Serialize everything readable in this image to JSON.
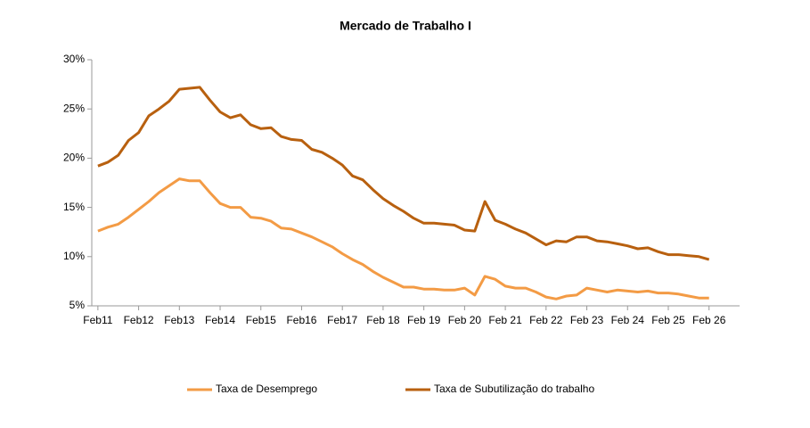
{
  "chart_data": {
    "type": "line",
    "title": "Mercado de Trabalho I",
    "x": [
      "2011-02",
      "2011-05",
      "2011-08",
      "2011-11",
      "2012-02",
      "2012-05",
      "2012-08",
      "2012-11",
      "2013-02",
      "2013-05",
      "2013-08",
      "2013-11",
      "2014-02",
      "2014-05",
      "2014-08",
      "2014-11",
      "2015-02",
      "2015-05",
      "2015-08",
      "2015-11",
      "2016-02",
      "2016-05",
      "2016-08",
      "2016-11",
      "2017-02",
      "2017-05",
      "2017-08",
      "2017-11",
      "2018-02",
      "2018-05",
      "2018-08",
      "2018-11",
      "2019-02",
      "2019-05",
      "2019-08",
      "2019-11",
      "2020-02",
      "2020-05",
      "2020-08",
      "2020-11",
      "2021-02",
      "2021-05",
      "2021-08",
      "2021-11",
      "2022-02",
      "2022-05",
      "2022-08",
      "2022-11",
      "2023-02",
      "2023-05",
      "2023-08",
      "2023-11",
      "2024-02",
      "2024-05",
      "2024-08",
      "2024-11",
      "2025-02",
      "2025-05",
      "2025-08",
      "2025-11",
      "2026-02"
    ],
    "series": [
      {
        "name": "Taxa de Desemprego",
        "color": "#F39B45",
        "values": [
          12.6,
          13.0,
          13.3,
          14.0,
          14.8,
          15.6,
          16.5,
          17.2,
          17.9,
          17.7,
          17.7,
          16.5,
          15.4,
          15.0,
          15.0,
          14.0,
          13.9,
          13.6,
          12.9,
          12.8,
          12.4,
          12.0,
          11.5,
          11.0,
          10.3,
          9.7,
          9.2,
          8.5,
          7.9,
          7.4,
          6.9,
          6.9,
          6.7,
          6.7,
          6.6,
          6.6,
          6.8,
          6.1,
          8.0,
          7.7,
          7.0,
          6.8,
          6.8,
          6.4,
          5.9,
          5.7,
          6.0,
          6.1,
          6.8,
          6.6,
          6.4,
          6.6,
          6.5,
          6.4,
          6.5,
          6.3,
          6.3,
          6.2,
          6.0,
          5.8,
          5.8
        ]
      },
      {
        "name": "Taxa de Subutilização do trabalho",
        "color": "#B8600F",
        "values": [
          19.2,
          19.6,
          20.3,
          21.8,
          22.6,
          24.3,
          25.0,
          25.8,
          27.0,
          27.1,
          27.2,
          25.9,
          24.7,
          24.1,
          24.4,
          23.4,
          23.0,
          23.1,
          22.2,
          21.9,
          21.8,
          20.9,
          20.6,
          20.0,
          19.3,
          18.2,
          17.8,
          16.8,
          15.9,
          15.2,
          14.6,
          13.9,
          13.4,
          13.4,
          13.3,
          13.2,
          12.7,
          12.6,
          15.6,
          13.7,
          13.3,
          12.8,
          12.4,
          11.8,
          11.2,
          11.6,
          11.5,
          12.0,
          12.0,
          11.6,
          11.5,
          11.3,
          11.1,
          10.8,
          10.9,
          10.5,
          10.2,
          10.2,
          10.1,
          10.0,
          9.7
        ]
      }
    ],
    "xlim": [
      "2011-02",
      "2026-11"
    ],
    "xticks": [
      {
        "value": "2011-02",
        "label": "Feb11"
      },
      {
        "value": "2012-02",
        "label": "Feb12"
      },
      {
        "value": "2013-02",
        "label": "Feb13"
      },
      {
        "value": "2014-02",
        "label": "Feb14"
      },
      {
        "value": "2015-02",
        "label": "Feb15"
      },
      {
        "value": "2016-02",
        "label": "Feb16"
      },
      {
        "value": "2017-02",
        "label": "Feb17"
      },
      {
        "value": "2018-02",
        "label": "Feb 18"
      },
      {
        "value": "2019-02",
        "label": "Feb 19"
      },
      {
        "value": "2020-02",
        "label": "Feb 20"
      },
      {
        "value": "2021-02",
        "label": "Feb 21"
      },
      {
        "value": "2022-02",
        "label": "Feb 22"
      },
      {
        "value": "2023-02",
        "label": "Feb 23"
      },
      {
        "value": "2024-02",
        "label": "Feb 24"
      },
      {
        "value": "2025-02",
        "label": "Feb 25"
      },
      {
        "value": "2026-02",
        "label": "Feb 26"
      }
    ],
    "ylim": [
      5,
      30
    ],
    "yticks": [
      {
        "value": 5,
        "label": "5%"
      },
      {
        "value": 10,
        "label": "10%"
      },
      {
        "value": 15,
        "label": "15%"
      },
      {
        "value": 20,
        "label": "20%"
      },
      {
        "value": 25,
        "label": "25%"
      },
      {
        "value": 30,
        "label": "30%"
      }
    ],
    "legend": "bottom"
  }
}
